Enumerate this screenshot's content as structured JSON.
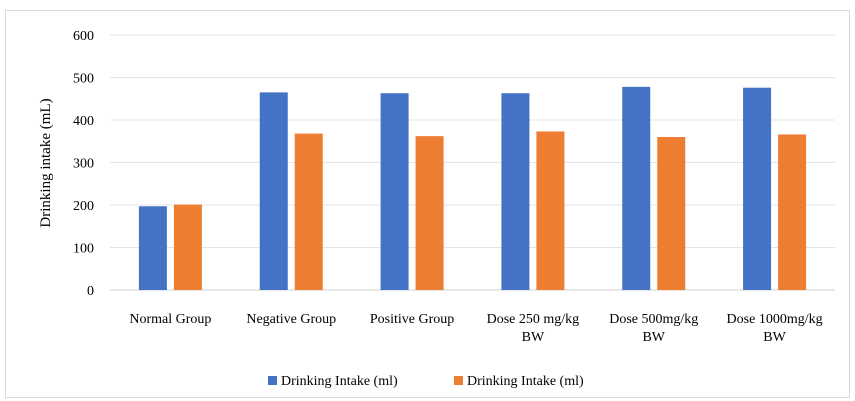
{
  "chart_data": {
    "type": "bar",
    "title": "",
    "xlabel": "",
    "ylabel": "Drinking intake (mL)",
    "ylim": [
      0,
      600
    ],
    "yticks": [
      0,
      100,
      200,
      300,
      400,
      500,
      600
    ],
    "grid": true,
    "legend": "bottom",
    "categories": [
      [
        "Normal Group"
      ],
      [
        "Negative Group"
      ],
      [
        "Positive Group"
      ],
      [
        "Dose 250 mg/kg",
        "BW"
      ],
      [
        "Dose 500mg/kg",
        "BW"
      ],
      [
        "Dose 1000mg/kg",
        "BW"
      ]
    ],
    "series": [
      {
        "name": "Drinking Intake (ml)",
        "color": "#4472C4",
        "values": [
          197,
          465,
          463,
          463,
          478,
          476
        ]
      },
      {
        "name": "Drinking Intake (ml)",
        "color": "#ED7D31",
        "values": [
          201,
          368,
          362,
          373,
          360,
          366
        ]
      }
    ]
  }
}
